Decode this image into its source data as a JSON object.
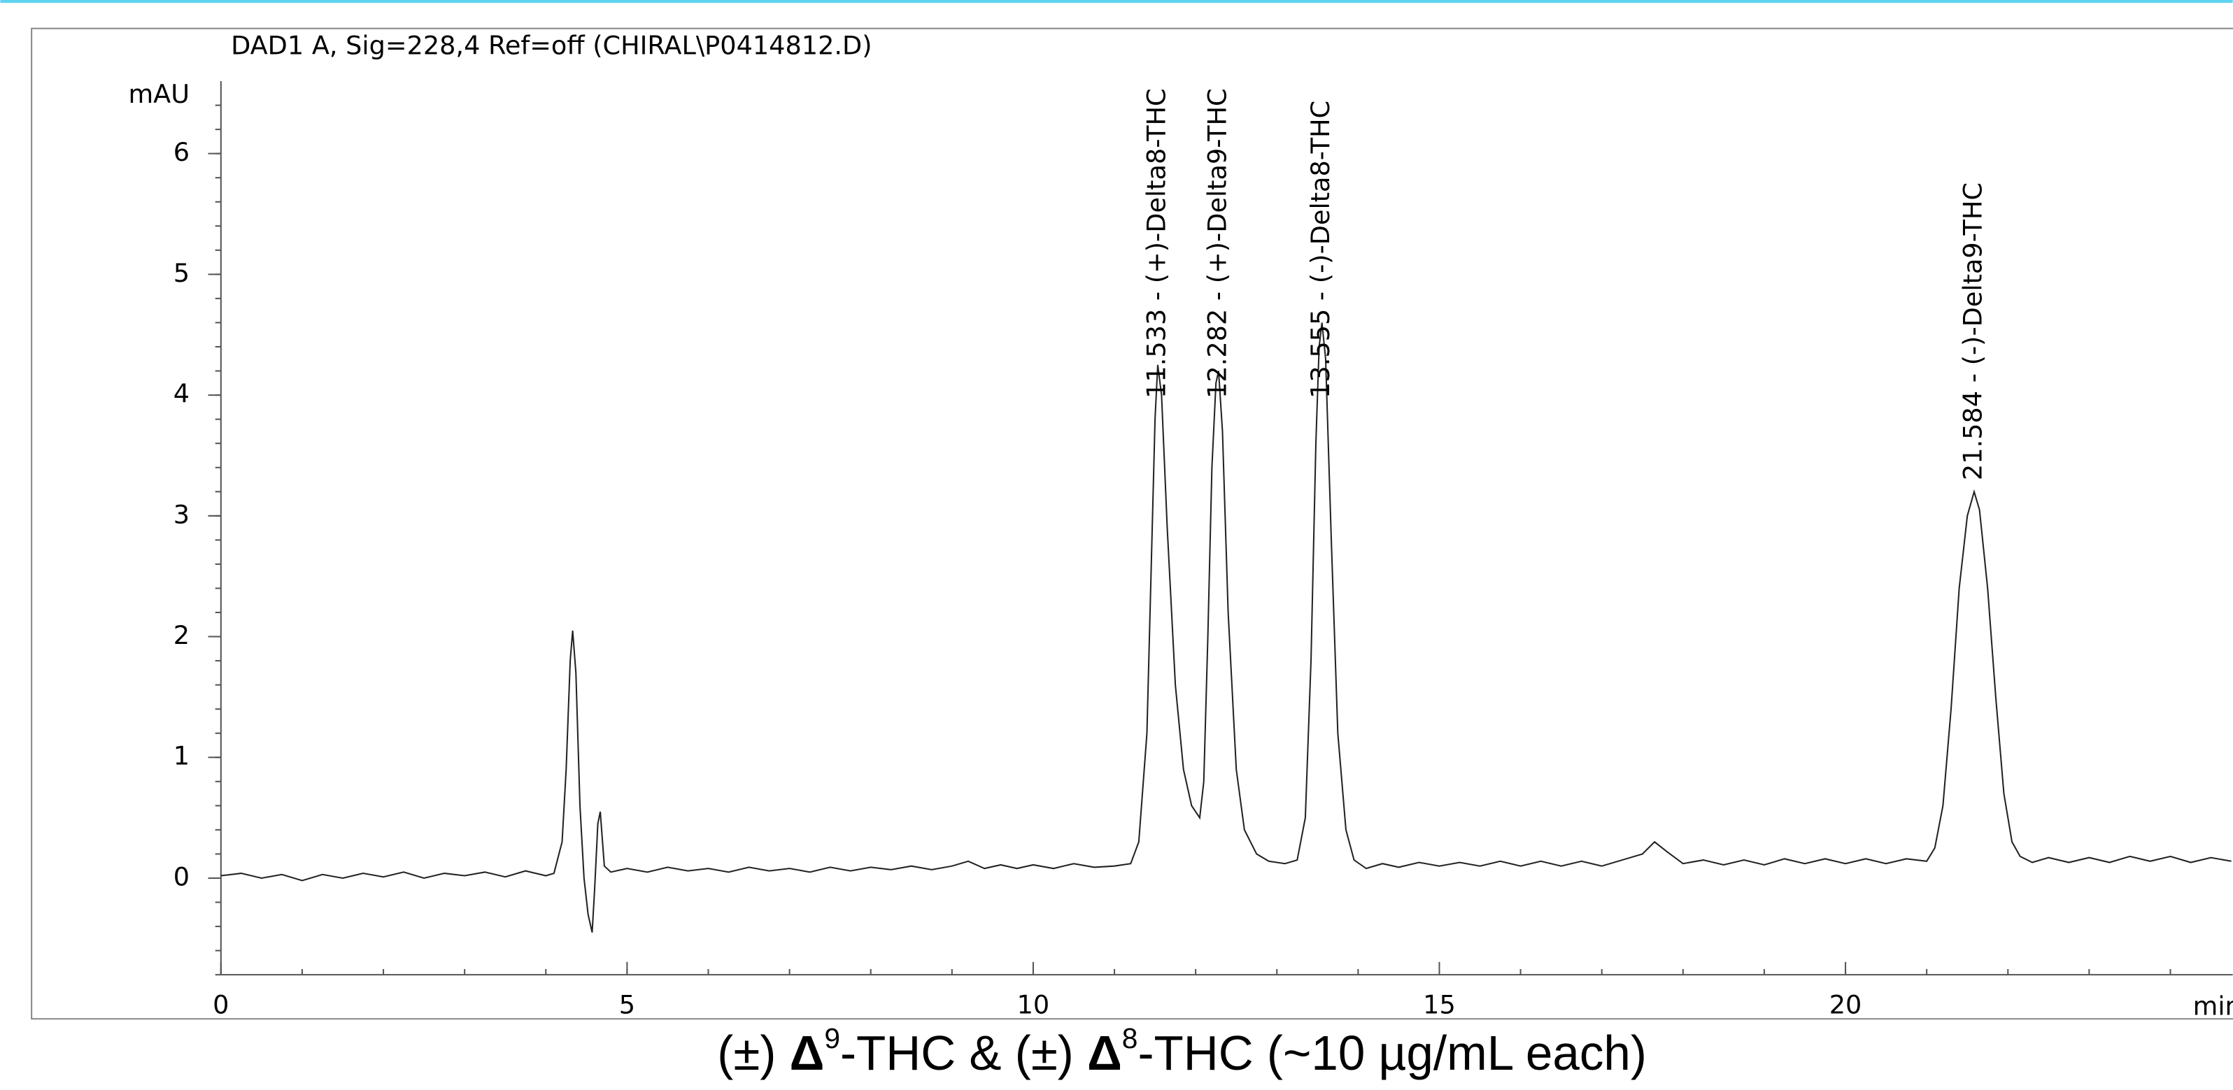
{
  "chart_data": {
    "type": "line",
    "title": "DAD1 A, Sig=228,4 Ref=off (CHIRAL\\P0414812.D)",
    "y_label": "mAU",
    "x_label": "min",
    "caption": [
      "(±) ",
      "Δ",
      "9",
      "-THC & (±) ",
      "Δ",
      "8",
      "-THC (~10 µg/mL each)"
    ],
    "color": "#222",
    "xlim": [
      0,
      24.8
    ],
    "ylim": [
      -0.8,
      6.6
    ],
    "xticks": [
      0,
      5,
      10,
      15,
      20
    ],
    "yticks": [
      0,
      1,
      2,
      3,
      4,
      5,
      6
    ],
    "annotations": [
      {
        "text": "11.533 -  (+)-Delta8-THC",
        "x": 11.533
      },
      {
        "text": "12.282 -  (+)-Delta9-THC",
        "x": 12.282
      },
      {
        "text": "13.555 -  (-)-Delta8-THC",
        "x": 13.555
      },
      {
        "text": "21.584 -  (-)-Delta9-THC",
        "x": 21.584
      }
    ],
    "x": [
      0,
      0.25,
      0.5,
      0.75,
      1,
      1.25,
      1.5,
      1.75,
      2,
      2.25,
      2.5,
      2.75,
      3,
      3.25,
      3.5,
      3.75,
      4,
      4.1,
      4.2,
      4.25,
      4.3,
      4.33,
      4.37,
      4.42,
      4.47,
      4.52,
      4.57,
      4.6,
      4.64,
      4.67,
      4.72,
      4.8,
      5,
      5.25,
      5.5,
      5.75,
      6,
      6.25,
      6.5,
      6.75,
      7,
      7.25,
      7.5,
      7.75,
      8,
      8.25,
      8.5,
      8.75,
      9,
      9.2,
      9.4,
      9.6,
      9.8,
      10,
      10.25,
      10.5,
      10.75,
      11,
      11.2,
      11.3,
      11.4,
      11.45,
      11.5,
      11.533,
      11.58,
      11.65,
      11.75,
      11.85,
      11.95,
      12.05,
      12.1,
      12.15,
      12.2,
      12.25,
      12.282,
      12.33,
      12.4,
      12.5,
      12.6,
      12.75,
      12.9,
      13.1,
      13.25,
      13.35,
      13.42,
      13.48,
      13.52,
      13.555,
      13.6,
      13.67,
      13.75,
      13.85,
      13.95,
      14.1,
      14.3,
      14.5,
      14.75,
      15,
      15.25,
      15.5,
      15.75,
      16,
      16.25,
      16.5,
      16.75,
      17,
      17.25,
      17.5,
      17.65,
      17.8,
      18,
      18.25,
      18.5,
      18.75,
      19,
      19.25,
      19.5,
      19.75,
      20,
      20.25,
      20.5,
      20.75,
      21,
      21.1,
      21.2,
      21.3,
      21.4,
      21.5,
      21.584,
      21.65,
      21.75,
      21.85,
      21.95,
      22.05,
      22.15,
      22.3,
      22.5,
      22.75,
      23,
      23.25,
      23.5,
      23.75,
      24,
      24.25,
      24.5,
      24.75
    ],
    "values": [
      0.02,
      0.04,
      0,
      0.03,
      -0.02,
      0.03,
      0,
      0.04,
      0.01,
      0.05,
      0,
      0.04,
      0.02,
      0.05,
      0.01,
      0.06,
      0.02,
      0.04,
      0.3,
      0.9,
      1.8,
      2.05,
      1.7,
      0.6,
      0,
      -0.3,
      -0.45,
      -0.1,
      0.45,
      0.55,
      0.1,
      0.05,
      0.08,
      0.05,
      0.09,
      0.06,
      0.08,
      0.05,
      0.09,
      0.06,
      0.08,
      0.05,
      0.09,
      0.06,
      0.09,
      0.07,
      0.1,
      0.07,
      0.1,
      0.14,
      0.08,
      0.11,
      0.08,
      0.11,
      0.08,
      0.12,
      0.09,
      0.1,
      0.12,
      0.3,
      1.2,
      2.5,
      3.8,
      4.25,
      4,
      2.9,
      1.6,
      0.9,
      0.6,
      0.5,
      0.8,
      2,
      3.4,
      4.1,
      4.2,
      3.7,
      2.2,
      0.9,
      0.4,
      0.2,
      0.14,
      0.12,
      0.15,
      0.5,
      1.8,
      3.6,
      4.4,
      4.6,
      4.3,
      2.8,
      1.2,
      0.4,
      0.15,
      0.08,
      0.12,
      0.09,
      0.13,
      0.1,
      0.13,
      0.1,
      0.14,
      0.1,
      0.14,
      0.1,
      0.14,
      0.1,
      0.15,
      0.2,
      0.3,
      0.22,
      0.12,
      0.15,
      0.11,
      0.15,
      0.11,
      0.16,
      0.12,
      0.16,
      0.12,
      0.16,
      0.12,
      0.16,
      0.14,
      0.25,
      0.6,
      1.4,
      2.4,
      3,
      3.2,
      3.05,
      2.4,
      1.5,
      0.7,
      0.3,
      0.18,
      0.13,
      0.17,
      0.13,
      0.17,
      0.13,
      0.18,
      0.14,
      0.18,
      0.13,
      0.17,
      0.14
    ]
  }
}
